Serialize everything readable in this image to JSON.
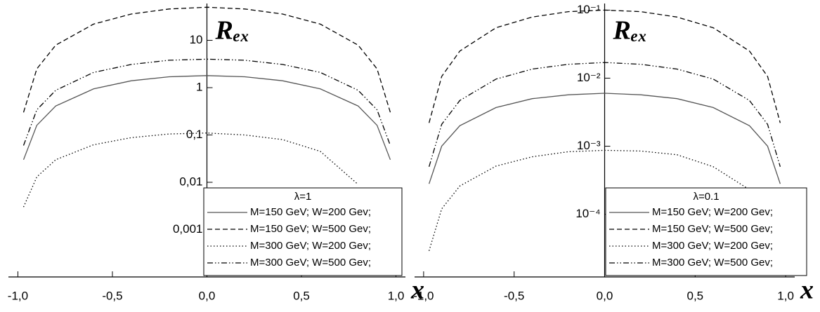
{
  "chart_data": [
    {
      "type": "line",
      "y_label": "Rₑₓ",
      "x_label": "x",
      "log_y": true,
      "legend_loc": "lower right",
      "legend_title": "λ=1",
      "x": [
        -0.97,
        -0.9,
        -0.8,
        -0.6,
        -0.4,
        -0.2,
        0,
        0.2,
        0.4,
        0.6,
        0.8,
        0.9,
        0.97
      ],
      "series": [
        {
          "name": "M=150 GeV; W=200 Gev;",
          "color": "#555555",
          "dash": "solid",
          "values": [
            0.03,
            0.16,
            0.41,
            0.94,
            1.4,
            1.7,
            1.8,
            1.7,
            1.4,
            0.94,
            0.41,
            0.16,
            0.03
          ]
        },
        {
          "name": "M=150 GeV; W=500 Gev;",
          "color": "#000000",
          "dash": "dashed",
          "values": [
            0.3,
            2.5,
            7.9,
            22,
            36,
            46,
            50,
            46,
            36,
            22,
            7.9,
            2.5,
            0.3
          ]
        },
        {
          "name": "M=300 GeV; W=200 Gev;",
          "color": "#000000",
          "dash": "dotted",
          "values": [
            0.003,
            0.013,
            0.03,
            0.062,
            0.088,
            0.105,
            0.11,
            0.1,
            0.08,
            0.045,
            0.009,
            null,
            null
          ]
        },
        {
          "name": "M=300 GeV; W=500 Gev;",
          "color": "#000000",
          "dash": "dashdot",
          "values": [
            0.06,
            0.34,
            0.88,
            2.1,
            3.1,
            3.8,
            4,
            3.8,
            3.1,
            2.1,
            0.88,
            0.34,
            0.06
          ]
        }
      ],
      "xlim": [
        -1.05,
        1.05
      ],
      "xticks": [
        {
          "value": -1,
          "label": "-1,0"
        },
        {
          "value": -0.5,
          "label": "-0,5"
        },
        {
          "value": 0,
          "label": "0,0"
        },
        {
          "value": 0.5,
          "label": "0,5"
        },
        {
          "value": 1,
          "label": "1,0"
        }
      ],
      "ylim": [
        0.0001,
        60
      ],
      "yticks": [
        {
          "value": 0.001,
          "label": "0,001"
        },
        {
          "value": 0.01,
          "label": "0,01"
        },
        {
          "value": 0.1,
          "label": "0,1"
        },
        1,
        10
      ]
    },
    {
      "type": "line",
      "y_label": "Rₑₓ",
      "x_label": "x",
      "log_y": true,
      "legend_loc": "lower right",
      "legend_title": "λ=0.1",
      "x": [
        -0.97,
        -0.9,
        -0.8,
        -0.6,
        -0.4,
        -0.2,
        0,
        0.2,
        0.4,
        0.6,
        0.8,
        0.9,
        0.97
      ],
      "series": [
        {
          "name": "M=150 GeV; W=200 Gev;",
          "color": "#555555",
          "dash": "solid",
          "values": [
            0.00028,
            0.001,
            0.002,
            0.0037,
            0.005,
            0.0057,
            0.006,
            0.0057,
            0.005,
            0.0037,
            0.002,
            0.001,
            0.00028
          ]
        },
        {
          "name": "M=150 GeV; W=500 Gev;",
          "color": "#000000",
          "dash": "dashed",
          "values": [
            0.0022,
            0.0106,
            0.025,
            0.055,
            0.079,
            0.095,
            0.1,
            0.095,
            0.079,
            0.055,
            0.025,
            0.0106,
            0.0022
          ]
        },
        {
          "name": "M=300 GeV; W=200 Gev;",
          "color": "#000000",
          "dash": "dotted",
          "values": [
            2.9e-05,
            0.00012,
            0.00026,
            0.00051,
            0.0007,
            0.00083,
            0.00087,
            0.00085,
            0.00075,
            0.0005,
            0.00023,
            null,
            null
          ]
        },
        {
          "name": "M=300 GeV; W=500 Gev;",
          "color": "#000000",
          "dash": "dashdot",
          "values": [
            0.0005,
            0.0021,
            0.0047,
            0.0097,
            0.0136,
            0.016,
            0.017,
            0.016,
            0.0136,
            0.0097,
            0.0047,
            0.0021,
            0.0005
          ]
        }
      ],
      "xlim": [
        -1.05,
        1.05
      ],
      "xticks": [
        {
          "value": -1,
          "label": "-1,0"
        },
        {
          "value": -0.5,
          "label": "-0,5"
        },
        {
          "value": 0,
          "label": "0,0"
        },
        {
          "value": 0.5,
          "label": "0,5"
        },
        {
          "value": 1,
          "label": "1,0"
        }
      ],
      "ylim": [
        1.2e-05,
        0.125
      ],
      "yticks": [
        {
          "value": 0.0001,
          "label": "10⁻⁴"
        },
        {
          "value": 0.001,
          "label": "10⁻³"
        },
        {
          "value": 0.01,
          "label": "10⁻²"
        },
        {
          "value": 0.1,
          "label": "10⁻¹"
        }
      ]
    }
  ]
}
